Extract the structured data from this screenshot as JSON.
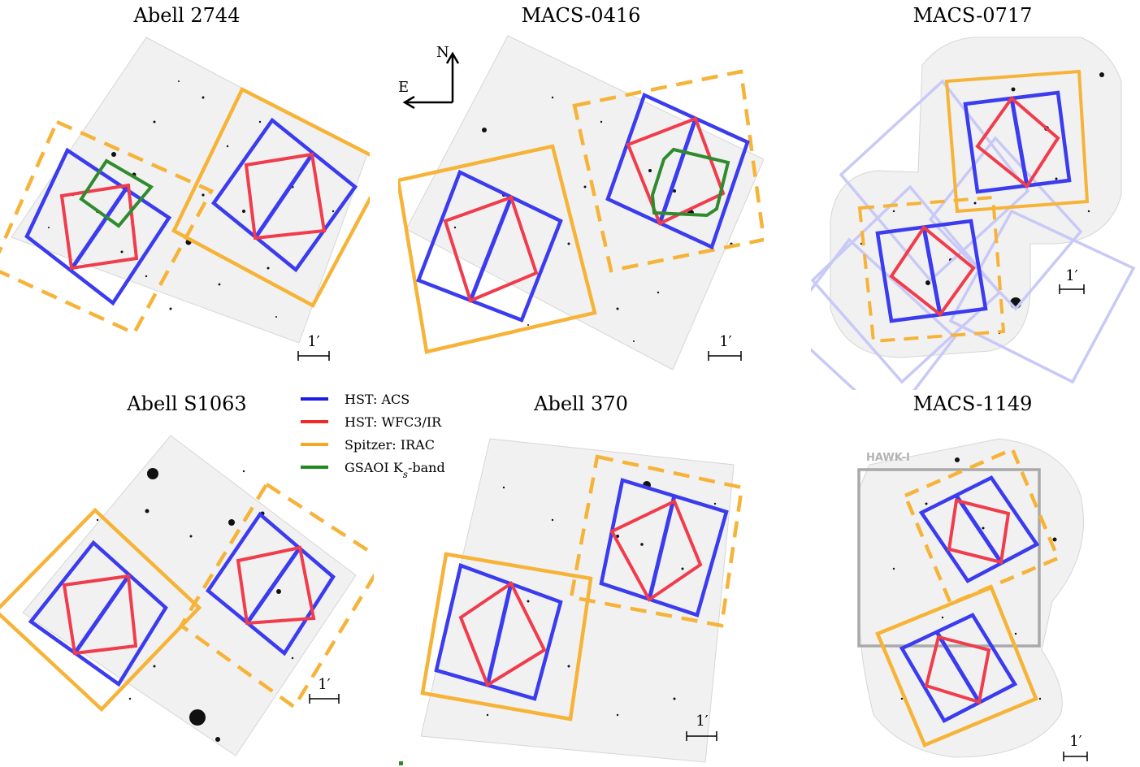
{
  "panels": [
    {
      "id": "abell-2744",
      "title": "Abell 2744",
      "scale_label": "1′"
    },
    {
      "id": "macs-0416",
      "title": "MACS-0416",
      "scale_label": "1′"
    },
    {
      "id": "macs-0717",
      "title": "MACS-0717",
      "scale_label": "1′"
    },
    {
      "id": "abell-s1063",
      "title": "Abell S1063",
      "scale_label": "1′"
    },
    {
      "id": "abell-370",
      "title": "Abell 370",
      "scale_label": "1′"
    },
    {
      "id": "macs-1149",
      "title": "MACS-1149",
      "scale_label": "1′",
      "extra_label": "HAWK-I"
    }
  ],
  "compass": {
    "north": "N",
    "east": "E"
  },
  "legend": [
    {
      "label": "HST: ACS",
      "color": "#1a1ae6"
    },
    {
      "label": "HST: WFC3/IR",
      "color": "#ee2b2b"
    },
    {
      "label": "Spitzer: IRAC",
      "color": "#f5a623"
    },
    {
      "label": "GSAOI K",
      "label_sub": "s",
      "label_tail": "-band",
      "color": "#1f8a1f"
    }
  ],
  "colors": {
    "acs": "#3b3bef",
    "wfc3": "#f03c4c",
    "irac": "#f6b338",
    "gsaoi": "#2e8b2e",
    "hawk": "#a9a9a9",
    "faint_acs": "#c9c9f7",
    "sky": "#f1f1f1"
  }
}
